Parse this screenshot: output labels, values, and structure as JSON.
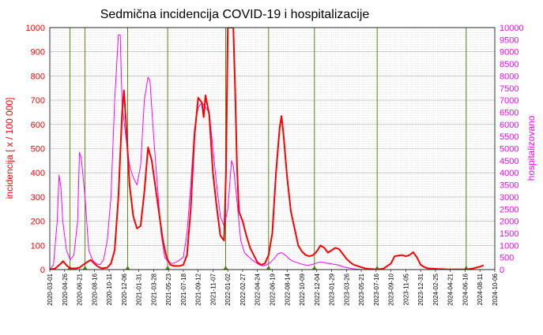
{
  "chart_data": {
    "type": "line",
    "title": "Sedmična incidencija COVID-19 i hospitalizacije",
    "ylabel_left": "incidencija [ x / 100 000]",
    "ylabel_right": "hospitalizovano",
    "ylim_left": [
      0,
      1000
    ],
    "ylim_right": [
      0,
      10000
    ],
    "yticks_left": [
      "0",
      "100",
      "200",
      "300",
      "400",
      "500",
      "600",
      "700",
      "800",
      "900",
      "1000"
    ],
    "yticks_right": [
      "0",
      "500",
      "1000",
      "1500",
      "2000",
      "2500",
      "3000",
      "3500",
      "4000",
      "4500",
      "5000",
      "5500",
      "6000",
      "6500",
      "7000",
      "7500",
      "8000",
      "8500",
      "9000",
      "9500",
      "10000"
    ],
    "xlim": [
      "2020-03-01",
      "2024-10-06"
    ],
    "xticks": [
      "2020-03-01",
      "2020-04-26",
      "2020-06-21",
      "2020-08-16",
      "2020-10-11",
      "2020-12-06",
      "2021-01-31",
      "2021-03-28",
      "2021-05-23",
      "2021-07-18",
      "2021-09-12",
      "2021-11-07",
      "2022-01-02",
      "2022-02-27",
      "2022-04-24",
      "2022-06-19",
      "2022-08-14",
      "2022-10-09",
      "2022-12-04",
      "2023-01-29",
      "2023-03-26",
      "2023-05-21",
      "2023-07-16",
      "2023-09-10",
      "2023-11-05",
      "2023-12-31",
      "2024-02-25",
      "2024-04-21",
      "2024-06-16",
      "2024-08-11",
      "2024-10-06"
    ],
    "grid": true,
    "colors": {
      "incidence": "#ff0000",
      "hospitalized": "#ff00ff",
      "markers": "#4f8a10",
      "left_axis": "#ff0000",
      "right_axis": "#ff00ff"
    },
    "vertical_markers": [
      "2020-05-16",
      "2020-07-12",
      "2020-12-20",
      "2021-05-20",
      "2021-12-25",
      "2022-06-05",
      "2022-11-25",
      "2023-07-20",
      "2024-06-20"
    ],
    "series": [
      {
        "axis": "left",
        "color": "#ff0000",
        "points": [
          [
            "2020-03-01",
            0
          ],
          [
            "2020-03-22",
            5
          ],
          [
            "2020-04-12",
            25
          ],
          [
            "2020-04-20",
            35
          ],
          [
            "2020-05-03",
            18
          ],
          [
            "2020-05-17",
            5
          ],
          [
            "2020-06-07",
            5
          ],
          [
            "2020-06-21",
            8
          ],
          [
            "2020-07-05",
            20
          ],
          [
            "2020-07-19",
            30
          ],
          [
            "2020-08-02",
            40
          ],
          [
            "2020-08-16",
            25
          ],
          [
            "2020-08-30",
            12
          ],
          [
            "2020-09-13",
            5
          ],
          [
            "2020-10-04",
            8
          ],
          [
            "2020-10-18",
            25
          ],
          [
            "2020-11-01",
            80
          ],
          [
            "2020-11-15",
            300
          ],
          [
            "2020-11-29",
            650
          ],
          [
            "2020-12-06",
            740
          ],
          [
            "2020-12-13",
            620
          ],
          [
            "2020-12-27",
            350
          ],
          [
            "2021-01-10",
            220
          ],
          [
            "2021-01-24",
            170
          ],
          [
            "2021-02-07",
            180
          ],
          [
            "2021-02-21",
            320
          ],
          [
            "2021-03-07",
            505
          ],
          [
            "2021-03-21",
            450
          ],
          [
            "2021-04-04",
            340
          ],
          [
            "2021-04-18",
            230
          ],
          [
            "2021-05-02",
            120
          ],
          [
            "2021-05-16",
            50
          ],
          [
            "2021-05-30",
            20
          ],
          [
            "2021-06-13",
            15
          ],
          [
            "2021-07-04",
            15
          ],
          [
            "2021-07-18",
            20
          ],
          [
            "2021-08-01",
            60
          ],
          [
            "2021-08-15",
            250
          ],
          [
            "2021-08-29",
            550
          ],
          [
            "2021-09-12",
            710
          ],
          [
            "2021-09-26",
            690
          ],
          [
            "2021-10-03",
            630
          ],
          [
            "2021-10-10",
            720
          ],
          [
            "2021-10-24",
            640
          ],
          [
            "2021-11-07",
            400
          ],
          [
            "2021-11-21",
            260
          ],
          [
            "2021-12-05",
            140
          ],
          [
            "2021-12-19",
            120
          ],
          [
            "2021-12-26",
            400
          ],
          [
            "2022-01-02",
            1000
          ],
          [
            "2022-01-09",
            1000
          ],
          [
            "2022-01-16",
            1000
          ],
          [
            "2022-01-23",
            1000
          ],
          [
            "2022-01-30",
            730
          ],
          [
            "2022-02-06",
            420
          ],
          [
            "2022-02-13",
            240
          ],
          [
            "2022-02-27",
            200
          ],
          [
            "2022-03-13",
            140
          ],
          [
            "2022-03-27",
            90
          ],
          [
            "2022-04-10",
            60
          ],
          [
            "2022-04-24",
            30
          ],
          [
            "2022-05-08",
            20
          ],
          [
            "2022-05-22",
            25
          ],
          [
            "2022-06-05",
            60
          ],
          [
            "2022-06-19",
            150
          ],
          [
            "2022-07-03",
            400
          ],
          [
            "2022-07-17",
            590
          ],
          [
            "2022-07-24",
            635
          ],
          [
            "2022-07-31",
            560
          ],
          [
            "2022-08-14",
            380
          ],
          [
            "2022-08-28",
            240
          ],
          [
            "2022-09-11",
            170
          ],
          [
            "2022-09-25",
            100
          ],
          [
            "2022-10-09",
            75
          ],
          [
            "2022-10-23",
            60
          ],
          [
            "2022-11-06",
            55
          ],
          [
            "2022-11-20",
            60
          ],
          [
            "2022-12-04",
            75
          ],
          [
            "2022-12-18",
            100
          ],
          [
            "2023-01-01",
            90
          ],
          [
            "2023-01-15",
            70
          ],
          [
            "2023-01-29",
            80
          ],
          [
            "2023-02-12",
            90
          ],
          [
            "2023-02-26",
            85
          ],
          [
            "2023-03-12",
            65
          ],
          [
            "2023-03-26",
            45
          ],
          [
            "2023-04-09",
            30
          ],
          [
            "2023-04-23",
            20
          ],
          [
            "2023-05-07",
            15
          ],
          [
            "2023-05-21",
            10
          ],
          [
            "2023-06-04",
            5
          ],
          [
            "2023-06-18",
            3
          ],
          [
            "2023-07-02",
            2
          ],
          [
            "2023-07-16",
            1
          ],
          [
            "2023-07-30",
            2
          ],
          [
            "2023-08-13",
            4
          ],
          [
            "2023-08-27",
            15
          ],
          [
            "2023-09-10",
            25
          ],
          [
            "2023-09-24",
            55
          ],
          [
            "2023-10-08",
            58
          ],
          [
            "2023-10-22",
            60
          ],
          [
            "2023-11-05",
            55
          ],
          [
            "2023-11-19",
            60
          ],
          [
            "2023-12-03",
            72
          ],
          [
            "2023-12-17",
            50
          ],
          [
            "2023-12-31",
            20
          ],
          [
            "2024-01-14",
            10
          ],
          [
            "2024-01-28",
            5
          ],
          [
            "2024-02-11",
            4
          ],
          [
            "2024-02-25",
            3
          ],
          [
            "2024-03-10",
            2
          ],
          [
            "2024-03-24",
            2
          ],
          [
            "2024-04-07",
            1
          ],
          [
            "2024-04-21",
            1
          ],
          [
            "2024-05-05",
            1
          ],
          [
            "2024-05-19",
            1
          ],
          [
            "2024-06-02",
            1
          ],
          [
            "2024-06-16",
            1
          ],
          [
            "2024-06-30",
            2
          ],
          [
            "2024-07-14",
            4
          ],
          [
            "2024-07-28",
            8
          ],
          [
            "2024-08-11",
            12
          ],
          [
            "2024-08-25",
            18
          ]
        ]
      },
      {
        "axis": "right",
        "color": "#ff00ff",
        "points": [
          [
            "2020-03-01",
            0
          ],
          [
            "2020-03-15",
            200
          ],
          [
            "2020-03-29",
            2000
          ],
          [
            "2020-04-05",
            3900
          ],
          [
            "2020-04-12",
            3400
          ],
          [
            "2020-04-19",
            2000
          ],
          [
            "2020-05-03",
            800
          ],
          [
            "2020-05-17",
            400
          ],
          [
            "2020-05-31",
            600
          ],
          [
            "2020-06-14",
            2000
          ],
          [
            "2020-06-21",
            4850
          ],
          [
            "2020-06-28",
            4600
          ],
          [
            "2020-07-12",
            3000
          ],
          [
            "2020-07-26",
            800
          ],
          [
            "2020-08-09",
            400
          ],
          [
            "2020-08-23",
            250
          ],
          [
            "2020-09-06",
            200
          ],
          [
            "2020-09-20",
            400
          ],
          [
            "2020-10-04",
            1200
          ],
          [
            "2020-10-18",
            3000
          ],
          [
            "2020-11-01",
            7000
          ],
          [
            "2020-11-15",
            9700
          ],
          [
            "2020-11-22",
            9700
          ],
          [
            "2020-11-29",
            6800
          ],
          [
            "2020-12-13",
            5500
          ],
          [
            "2020-12-27",
            4300
          ],
          [
            "2021-01-10",
            3800
          ],
          [
            "2021-01-24",
            3500
          ],
          [
            "2021-02-07",
            4300
          ],
          [
            "2021-02-21",
            7000
          ],
          [
            "2021-03-07",
            7950
          ],
          [
            "2021-03-14",
            7800
          ],
          [
            "2021-03-28",
            5500
          ],
          [
            "2021-04-11",
            3500
          ],
          [
            "2021-04-25",
            1500
          ],
          [
            "2021-05-09",
            500
          ],
          [
            "2021-05-23",
            300
          ],
          [
            "2021-06-06",
            250
          ],
          [
            "2021-06-20",
            300
          ],
          [
            "2021-07-04",
            400
          ],
          [
            "2021-07-18",
            500
          ],
          [
            "2021-08-01",
            1500
          ],
          [
            "2021-08-15",
            3500
          ],
          [
            "2021-08-29",
            5800
          ],
          [
            "2021-09-12",
            6700
          ],
          [
            "2021-09-26",
            6900
          ],
          [
            "2021-10-10",
            6700
          ],
          [
            "2021-10-24",
            6500
          ],
          [
            "2021-11-07",
            5000
          ],
          [
            "2021-11-21",
            3500
          ],
          [
            "2021-12-05",
            2200
          ],
          [
            "2021-12-19",
            1800
          ],
          [
            "2022-01-02",
            2500
          ],
          [
            "2022-01-16",
            4500
          ],
          [
            "2022-01-23",
            4300
          ],
          [
            "2022-02-06",
            2800
          ],
          [
            "2022-02-20",
            1200
          ],
          [
            "2022-03-06",
            700
          ],
          [
            "2022-03-20",
            550
          ],
          [
            "2022-04-03",
            400
          ],
          [
            "2022-04-17",
            300
          ],
          [
            "2022-05-01",
            200
          ],
          [
            "2022-05-15",
            150
          ],
          [
            "2022-05-29",
            200
          ],
          [
            "2022-06-12",
            300
          ],
          [
            "2022-06-26",
            450
          ],
          [
            "2022-07-10",
            650
          ],
          [
            "2022-07-24",
            700
          ],
          [
            "2022-08-07",
            600
          ],
          [
            "2022-08-21",
            450
          ],
          [
            "2022-09-04",
            350
          ],
          [
            "2022-09-18",
            300
          ],
          [
            "2022-10-02",
            250
          ],
          [
            "2022-10-16",
            200
          ],
          [
            "2022-10-30",
            180
          ],
          [
            "2022-11-13",
            200
          ],
          [
            "2022-11-27",
            250
          ],
          [
            "2022-12-11",
            300
          ],
          [
            "2022-12-25",
            300
          ],
          [
            "2023-01-08",
            270
          ],
          [
            "2023-01-22",
            250
          ],
          [
            "2023-02-05",
            220
          ],
          [
            "2023-02-19",
            200
          ],
          [
            "2023-03-05",
            150
          ],
          [
            "2023-03-19",
            100
          ],
          [
            "2023-04-02",
            70
          ],
          [
            "2023-04-16",
            40
          ],
          [
            "2023-04-30",
            20
          ],
          [
            "2023-05-14",
            5
          ],
          [
            "2023-05-21",
            0
          ]
        ]
      }
    ]
  }
}
